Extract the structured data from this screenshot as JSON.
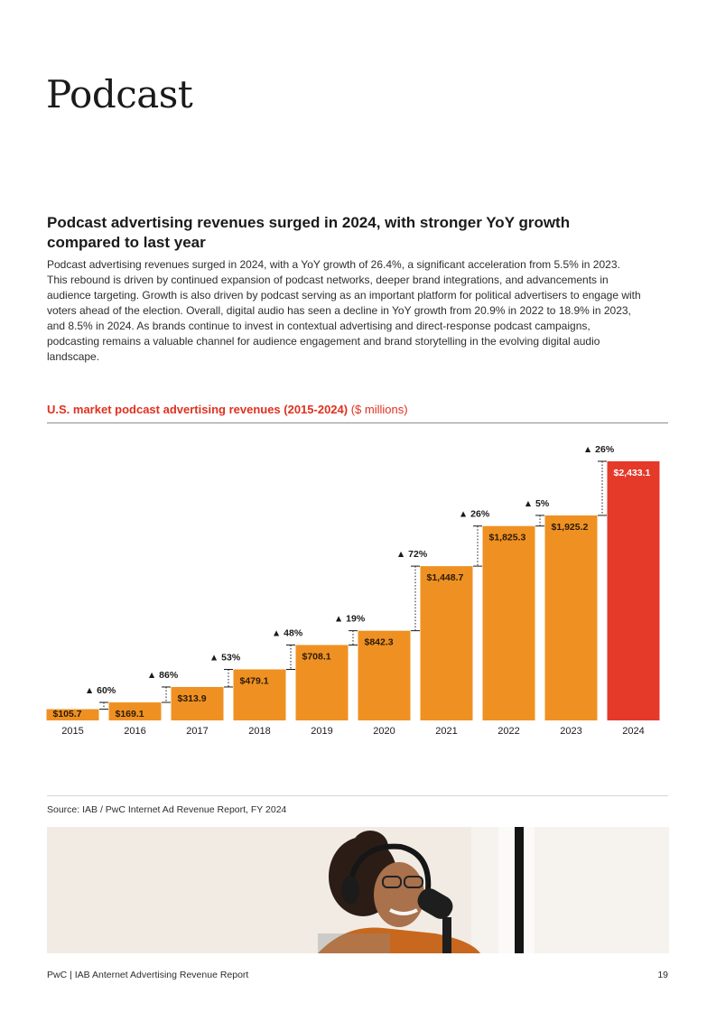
{
  "page": {
    "title": "Podcast",
    "heading": "Podcast advertising revenues surged in 2024, with stronger YoY growth compared to last year",
    "body": "Podcast advertising revenues surged in 2024, with a YoY growth of 26.4%, a significant acceleration from 5.5% in 2023. This rebound is driven by continued expansion of podcast networks, deeper brand integrations, and advancements in audience targeting. Growth is also driven by podcast serving as an important platform for political advertisers to engage with voters ahead of the election. Overall, digital audio has seen a decline in YoY growth from 20.9% in 2022 to 18.9% in 2023, and 8.5% in 2024. As brands continue to invest in contextual advertising and direct-response podcast campaigns, podcasting remains a valuable channel for audience engagement and brand storytelling in the evolving digital audio landscape.",
    "source": "Source: IAB / PwC Internet Ad Revenue Report, FY 2024",
    "footer": "PwC | IAB Anternet Advertising Revenue Report",
    "page_number": "19"
  },
  "chart_data": {
    "type": "bar",
    "title": "U.S. market podcast advertising revenues (2015-2024)",
    "units": "($ millions)",
    "categories": [
      "2015",
      "2016",
      "2017",
      "2018",
      "2019",
      "2020",
      "2021",
      "2022",
      "2023",
      "2024"
    ],
    "values": [
      105.7,
      169.1,
      313.9,
      479.1,
      708.1,
      842.3,
      1448.7,
      1825.3,
      1925.2,
      2433.1
    ],
    "value_labels": [
      "$105.7",
      "$169.1",
      "$313.9",
      "$479.1",
      "$708.1",
      "$842.3",
      "$1,448.7",
      "$1,825.3",
      "$1,925.2",
      "$2,433.1"
    ],
    "growth_labels": [
      "",
      "60%",
      "86%",
      "53%",
      "48%",
      "19%",
      "72%",
      "26%",
      "5%",
      "26%"
    ],
    "growth_marker": "▲",
    "highlight_index": 9,
    "colors": {
      "bar": "#ef9122",
      "highlight": "#e5392a",
      "label_dark": "#2a1a08",
      "label_light": "#ffffff"
    },
    "ylim": [
      0,
      2433.1
    ],
    "xlabel": "",
    "ylabel": ""
  }
}
